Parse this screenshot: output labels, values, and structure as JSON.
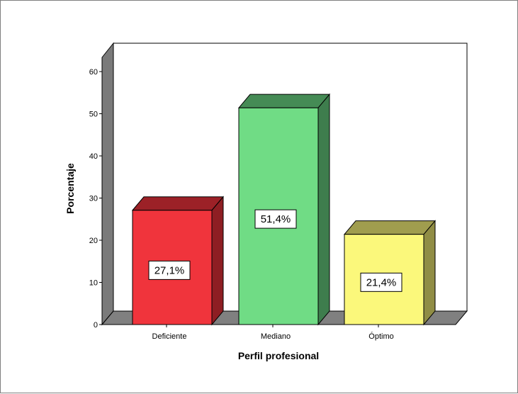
{
  "chart_data": {
    "type": "bar",
    "style": "3d",
    "categories": [
      "Deficiente",
      "Mediano",
      "Óptimo"
    ],
    "values": [
      27.1,
      51.4,
      21.4
    ],
    "data_labels": [
      "27,1%",
      "51,4%",
      "21,4%"
    ],
    "xlabel": "Perfil profesional",
    "ylabel": "Porcentaje",
    "ylim": [
      0,
      60
    ],
    "yticks": [
      0,
      10,
      20,
      30,
      40,
      50,
      60
    ],
    "ytick_labels": [
      "0",
      "10",
      "20",
      "30",
      "40",
      "50",
      "60"
    ],
    "grid": false,
    "legend": "none",
    "colors": {
      "front": [
        "#f0343c",
        "#70dc85",
        "#fbf87b"
      ],
      "top": [
        "#9c2127",
        "#458b55",
        "#a09d4e"
      ],
      "side": [
        "#8e1e23",
        "#3e7d4d",
        "#908d45"
      ],
      "wall": "#ffffff",
      "left_wall": "#7a7a7a",
      "floor": "#808080"
    }
  }
}
